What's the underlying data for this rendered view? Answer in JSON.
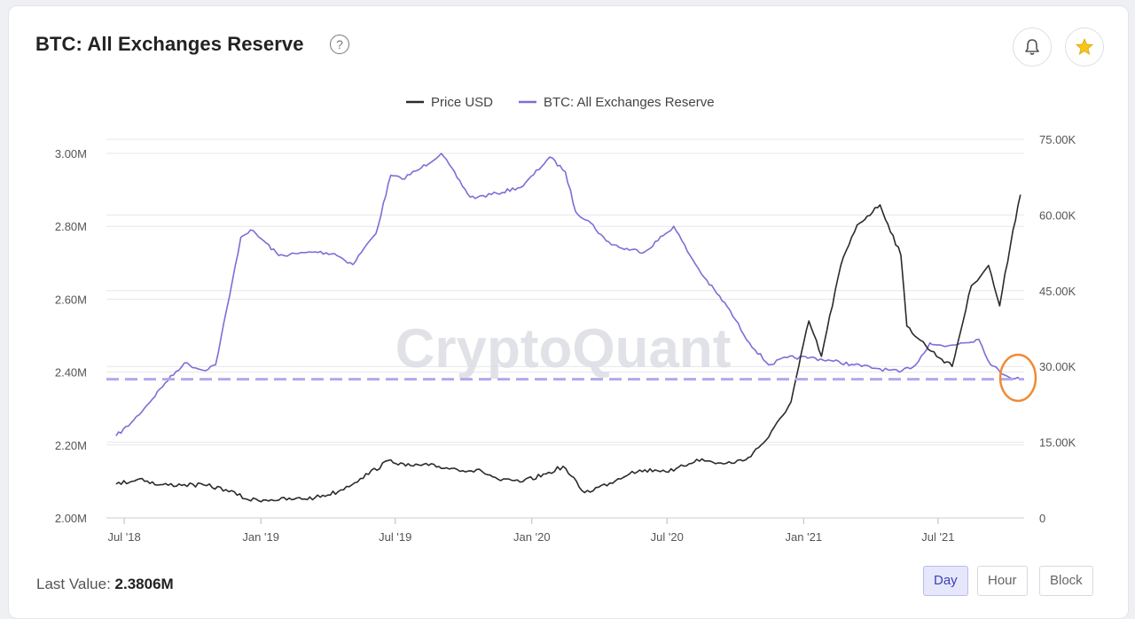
{
  "header": {
    "title": "BTC: All Exchanges Reserve",
    "help_glyph": "?",
    "icons": [
      "bell-icon",
      "star-icon"
    ]
  },
  "watermark": "CryptoQuant",
  "footer": {
    "last_value_label": "Last Value:",
    "last_value": "2.3806M",
    "granularity": [
      "Day",
      "Hour",
      "Block"
    ],
    "active_granularity": "Day"
  },
  "colors": {
    "price": "#2b2b2b",
    "reserve": "#7b6fd6",
    "reference_line": "#b3a9ec",
    "highlight": "#f08a35",
    "star": "#f7c51d"
  },
  "chart_data": {
    "type": "line",
    "legend": [
      "Price USD",
      "BTC: All Exchanges Reserve"
    ],
    "legend_placement": "top-center",
    "x_ticks": [
      "Jul '18",
      "Jan '19",
      "Jul '19",
      "Jan '20",
      "Jul '20",
      "Jan '21",
      "Jul '21"
    ],
    "y_left": {
      "ticks": [
        "2.00M",
        "2.20M",
        "2.40M",
        "2.60M",
        "2.80M",
        "3.00M"
      ],
      "range": [
        2000000,
        3000000
      ]
    },
    "y_right": {
      "ticks": [
        "0",
        "15.00K",
        "30.00K",
        "45.00K",
        "60.00K",
        "75.00K"
      ],
      "range": [
        0,
        75000
      ]
    },
    "grid": true,
    "reference_value": 2380600,
    "series": [
      {
        "name": "BTC: All Exchanges Reserve",
        "axis": "left",
        "x": [
          "2018-06-20",
          "2018-07-10",
          "2018-08-01",
          "2018-08-25",
          "2018-09-20",
          "2018-10-15",
          "2018-11-01",
          "2018-11-20",
          "2018-12-05",
          "2018-12-18",
          "2019-01-05",
          "2019-01-25",
          "2019-02-20",
          "2019-03-15",
          "2019-04-10",
          "2019-05-05",
          "2019-05-20",
          "2019-06-05",
          "2019-06-25",
          "2019-07-10",
          "2019-08-05",
          "2019-09-01",
          "2019-10-10",
          "2019-10-20",
          "2019-11-15",
          "2019-12-20",
          "2020-01-25",
          "2020-02-15",
          "2020-02-29",
          "2020-03-20",
          "2020-04-10",
          "2020-05-01",
          "2020-06-01",
          "2020-07-10",
          "2020-08-01",
          "2020-08-20",
          "2020-09-20",
          "2020-10-20",
          "2020-11-15",
          "2020-12-10",
          "2021-01-10",
          "2021-02-10",
          "2021-03-10",
          "2021-04-10",
          "2021-05-10",
          "2021-06-01",
          "2021-06-20",
          "2021-07-10",
          "2021-08-01",
          "2021-08-25",
          "2021-09-10",
          "2021-10-01",
          "2021-10-20"
        ],
        "values": [
          2225000,
          2260000,
          2310000,
          2370000,
          2425000,
          2405000,
          2420000,
          2610000,
          2770000,
          2790000,
          2760000,
          2720000,
          2725000,
          2730000,
          2725000,
          2695000,
          2740000,
          2780000,
          2940000,
          2930000,
          2960000,
          3000000,
          2880000,
          2880000,
          2890000,
          2910000,
          2990000,
          2950000,
          2840000,
          2810000,
          2760000,
          2740000,
          2730000,
          2800000,
          2720000,
          2660000,
          2580000,
          2480000,
          2420000,
          2440000,
          2440000,
          2430000,
          2420000,
          2410000,
          2400000,
          2420000,
          2480000,
          2470000,
          2480000,
          2490000,
          2420000,
          2390000,
          2380600
        ]
      },
      {
        "name": "Price USD",
        "axis": "right",
        "x": [
          "2018-06-20",
          "2018-07-25",
          "2018-08-15",
          "2018-09-20",
          "2018-10-20",
          "2018-11-15",
          "2018-12-15",
          "2019-01-15",
          "2019-02-15",
          "2019-03-15",
          "2019-04-15",
          "2019-05-15",
          "2019-06-25",
          "2019-07-15",
          "2019-08-15",
          "2019-09-15",
          "2019-10-26",
          "2019-11-20",
          "2019-12-20",
          "2020-01-20",
          "2020-02-12",
          "2020-03-12",
          "2020-04-15",
          "2020-05-15",
          "2020-06-15",
          "2020-07-10",
          "2020-08-10",
          "2020-09-15",
          "2020-10-15",
          "2020-11-15",
          "2020-12-15",
          "2021-01-08",
          "2021-01-25",
          "2021-02-20",
          "2021-03-14",
          "2021-04-14",
          "2021-05-12",
          "2021-05-20",
          "2021-06-22",
          "2021-07-20",
          "2021-08-15",
          "2021-09-07",
          "2021-09-22",
          "2021-10-10",
          "2021-10-20"
        ],
        "values": [
          6700,
          7800,
          6500,
          6600,
          6400,
          5600,
          3600,
          3600,
          3700,
          4000,
          5200,
          7800,
          11500,
          10300,
          10400,
          9800,
          9200,
          7400,
          7200,
          8700,
          10200,
          5000,
          6900,
          9200,
          9500,
          9300,
          11600,
          10700,
          11500,
          16000,
          23000,
          39000,
          32000,
          50000,
          58000,
          62000,
          52000,
          38000,
          33000,
          30000,
          46000,
          50000,
          42000,
          57000,
          64000
        ]
      }
    ]
  }
}
